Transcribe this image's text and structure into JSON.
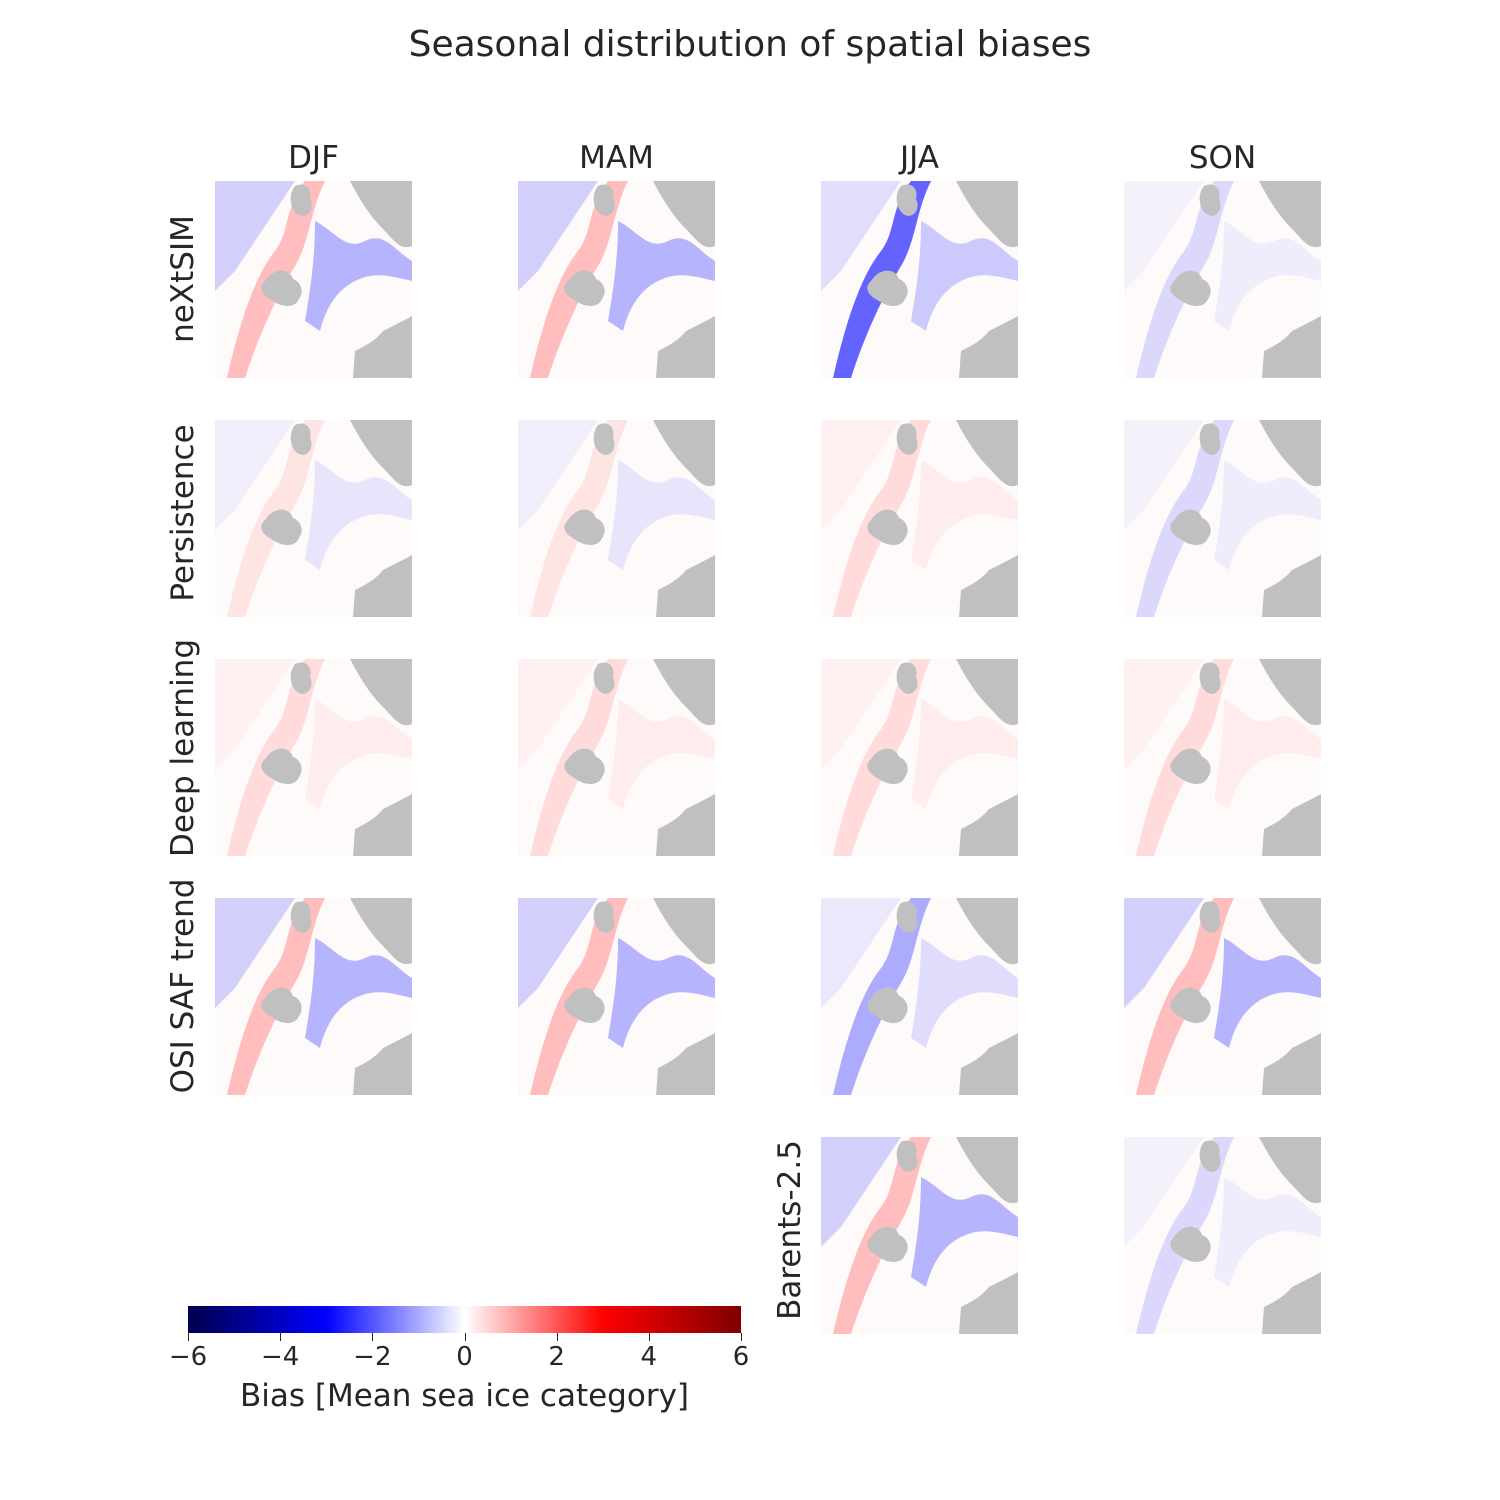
{
  "chart_data": {
    "type": "heatmap",
    "title": "Seasonal distribution of spatial biases",
    "columns": [
      "DJF",
      "MAM",
      "JJA",
      "SON"
    ],
    "rows": [
      "neXtSIM",
      "Persistence",
      "Deep learning",
      "OSI SAF trend",
      "Barents-2.5"
    ],
    "panels_present": {
      "neXtSIM": [
        "DJF",
        "MAM",
        "JJA",
        "SON"
      ],
      "Persistence": [
        "DJF",
        "MAM",
        "JJA",
        "SON"
      ],
      "Deep learning": [
        "DJF",
        "MAM",
        "JJA",
        "SON"
      ],
      "OSI SAF trend": [
        "DJF",
        "MAM",
        "JJA",
        "SON"
      ],
      "Barents-2.5": [
        "JJA",
        "SON"
      ]
    },
    "panel_character": {
      "neXtSIM": {
        "DJF": "mixed",
        "MAM": "mixed",
        "JJA": "strong-negative",
        "SON": "weak-negative"
      },
      "Persistence": {
        "DJF": "weak-mixed",
        "MAM": "weak-mixed",
        "JJA": "weak-positive",
        "SON": "weak-negative"
      },
      "Deep learning": {
        "DJF": "weak-positive",
        "MAM": "weak-positive",
        "JJA": "weak-positive",
        "SON": "weak-positive"
      },
      "OSI SAF trend": {
        "DJF": "mixed",
        "MAM": "mixed",
        "JJA": "negative",
        "SON": "mixed"
      },
      "Barents-2.5": {
        "JJA": "mixed",
        "SON": "weak-negative"
      }
    },
    "colorbar": {
      "label": "Bias [Mean sea ice category]",
      "range": [
        -6,
        6
      ],
      "ticks": [
        "−6",
        "−4",
        "−2",
        "0",
        "2",
        "4",
        "6"
      ],
      "colormap": "seismic"
    },
    "land_color": "#c0c0c0"
  }
}
